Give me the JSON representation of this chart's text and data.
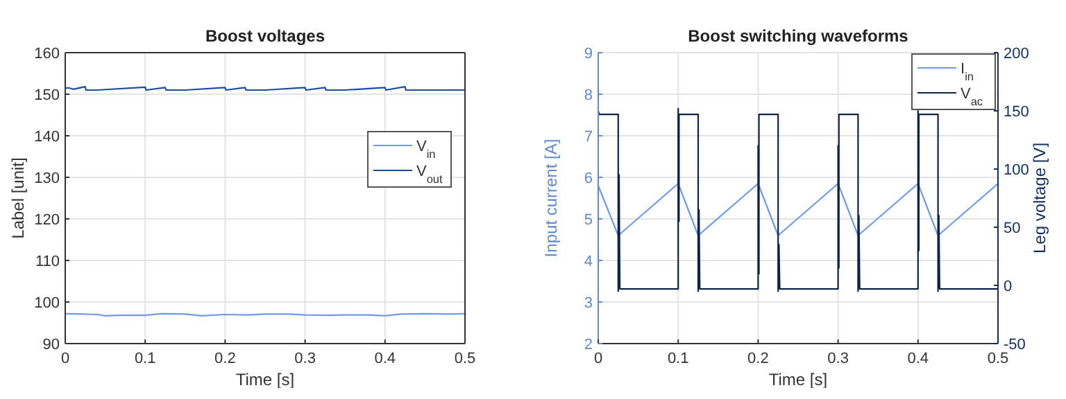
{
  "chart_data": [
    {
      "type": "line",
      "title": "Boost voltages",
      "xlabel": "Time [s]",
      "ylabel": "Label [unit]",
      "xlim": [
        0,
        0.5
      ],
      "xticks": [
        0,
        0.1,
        0.2,
        0.3,
        0.4,
        0.5
      ],
      "ylim": [
        90,
        160
      ],
      "yticks": [
        90,
        100,
        110,
        120,
        130,
        140,
        150,
        160
      ],
      "grid": true,
      "legend": "right",
      "series": [
        {
          "name": "V$_{in}$",
          "color": "#6f9be6",
          "x": [
            0,
            0.02,
            0.04,
            0.05,
            0.07,
            0.1,
            0.12,
            0.15,
            0.17,
            0.2,
            0.23,
            0.25,
            0.28,
            0.3,
            0.33,
            0.35,
            0.38,
            0.4,
            0.42,
            0.45,
            0.48,
            0.5
          ],
          "values": [
            97.2,
            97.1,
            97,
            96.7,
            96.8,
            96.8,
            97.2,
            97.1,
            96.7,
            97,
            96.9,
            97.1,
            97.1,
            96.9,
            96.8,
            96.9,
            96.9,
            96.7,
            97.1,
            97.2,
            97.1,
            97.2
          ]
        },
        {
          "name": "V$_{out}$",
          "color": "#1f4d9e",
          "x": [
            0,
            0.005,
            0.01,
            0.025,
            0.026,
            0.04,
            0.1,
            0.101,
            0.125,
            0.126,
            0.15,
            0.2,
            0.201,
            0.225,
            0.226,
            0.25,
            0.3,
            0.301,
            0.325,
            0.326,
            0.35,
            0.4,
            0.401,
            0.425,
            0.426,
            0.45,
            0.5
          ],
          "values": [
            151.5,
            151.5,
            151.2,
            151.8,
            151,
            151,
            151.7,
            151,
            151.6,
            151,
            151,
            151.6,
            151,
            151.6,
            151,
            151,
            151.6,
            151,
            151.6,
            151,
            151,
            151.6,
            151,
            151.8,
            151,
            151,
            151
          ]
        }
      ]
    },
    {
      "type": "line",
      "title": "Boost switching waveforms",
      "xlabel": "Time [s]",
      "ylabel": "Input current [A]",
      "y2label": "Leg voltage [V]",
      "xlim": [
        0,
        0.5
      ],
      "xticks": [
        0,
        0.1,
        0.2,
        0.3,
        0.4,
        0.5
      ],
      "ylim": [
        2,
        9
      ],
      "yticks": [
        2,
        3,
        4,
        5,
        6,
        7,
        8,
        9
      ],
      "y2lim": [
        -50,
        200
      ],
      "y2ticks": [
        -50,
        0,
        50,
        100,
        150,
        200
      ],
      "grid": true,
      "legend": "top right",
      "series": [
        {
          "name": "I$_{in}$",
          "color": "#6f9be6",
          "x": [
            0,
            0.025,
            0.1,
            0.125,
            0.2,
            0.225,
            0.3,
            0.325,
            0.4,
            0.425,
            0.5
          ],
          "values": [
            5.8,
            4.6,
            5.85,
            4.6,
            5.85,
            4.6,
            5.85,
            4.6,
            5.85,
            4.6,
            5.85
          ]
        },
        {
          "name": "V$_{ac}$",
          "color": "#0e2347",
          "axis": "y2",
          "x": [
            0,
            0.001,
            0.025,
            0.025,
            0.026,
            0.027,
            0.1,
            0.1,
            0.101,
            0.101,
            0.125,
            0.125,
            0.126,
            0.127,
            0.2,
            0.2,
            0.201,
            0.201,
            0.225,
            0.225,
            0.226,
            0.227,
            0.3,
            0.3,
            0.301,
            0.301,
            0.325,
            0.325,
            0.326,
            0.327,
            0.4,
            0.4,
            0.401,
            0.401,
            0.425,
            0.425,
            0.426,
            0.427,
            0.5
          ],
          "values": [
            150,
            147,
            147,
            -5,
            95,
            -3,
            -3,
            152,
            55,
            147,
            147,
            -5,
            65,
            -3,
            -3,
            120,
            10,
            147,
            147,
            -5,
            35,
            -3,
            -3,
            120,
            15,
            147,
            147,
            -5,
            60,
            -3,
            -3,
            150,
            30,
            147,
            147,
            -5,
            60,
            -3,
            -3
          ]
        }
      ]
    }
  ]
}
